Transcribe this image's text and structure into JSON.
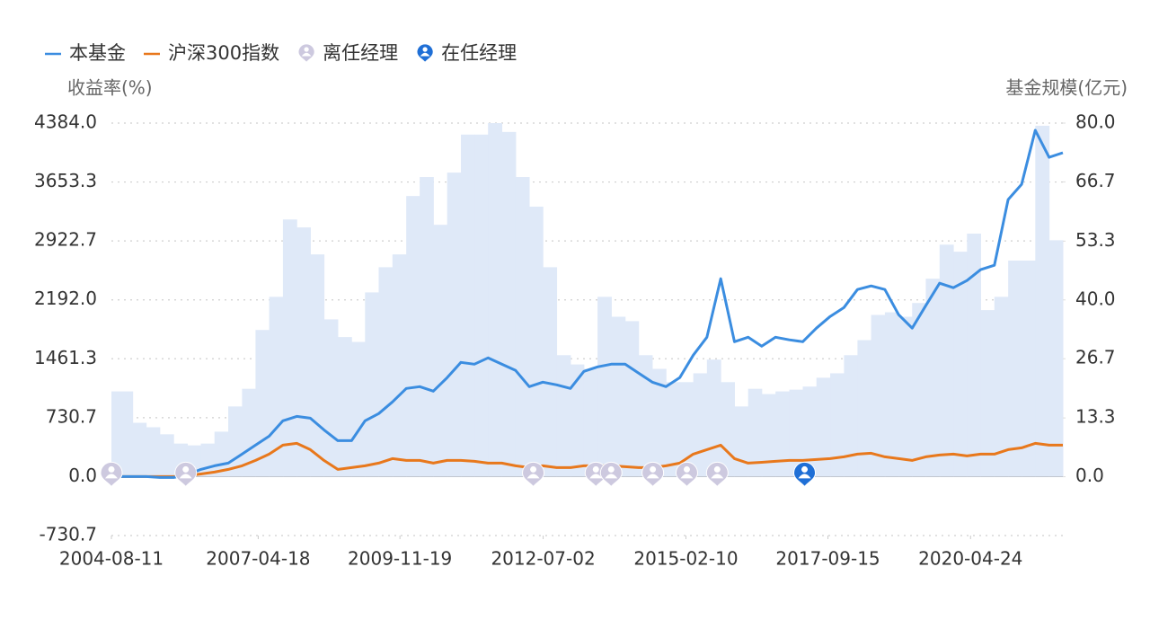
{
  "chart_data": {
    "type": "line",
    "y_label": "收益率(%)",
    "y2_label": "基金规模(亿元)",
    "xlim": [
      "2004-08-11",
      "2021-12-31"
    ],
    "xticks": [
      "2004-08-11",
      "2007-04-18",
      "2009-11-19",
      "2012-07-02",
      "2015-02-10",
      "2017-09-15",
      "2020-04-24"
    ],
    "ylim": [
      -730.7,
      4384
    ],
    "yticks": [
      -730.7,
      {
        "value": 0,
        "label": "0.0"
      },
      730.7,
      1461.3,
      {
        "value": 2192,
        "label": "2192.0"
      },
      2922.7,
      3653.3,
      {
        "value": 4384,
        "label": "4384.0"
      }
    ],
    "y2lim": [
      -13.3,
      80
    ],
    "y2ticks": [
      {
        "value": 0,
        "label": "0.0"
      },
      13.3,
      26.7,
      {
        "value": 40,
        "label": "40.0"
      },
      53.3,
      66.7,
      {
        "value": 80,
        "label": "80.0"
      }
    ],
    "grid": true,
    "x": [
      "2004-09-30",
      "2004-12-31",
      "2005-03-31",
      "2005-06-30",
      "2005-09-30",
      "2005-12-31",
      "2006-03-31",
      "2006-06-30",
      "2006-09-30",
      "2006-12-31",
      "2007-03-31",
      "2007-06-30",
      "2007-09-30",
      "2007-12-31",
      "2008-03-31",
      "2008-06-30",
      "2008-09-30",
      "2008-12-31",
      "2009-03-31",
      "2009-06-30",
      "2009-09-30",
      "2009-12-31",
      "2010-03-31",
      "2010-06-30",
      "2010-09-30",
      "2010-12-31",
      "2011-03-31",
      "2011-06-30",
      "2011-09-30",
      "2011-12-31",
      "2012-03-31",
      "2012-06-30",
      "2012-09-30",
      "2012-12-31",
      "2013-03-31",
      "2013-06-30",
      "2013-09-30",
      "2013-12-31",
      "2014-03-31",
      "2014-06-30",
      "2014-09-30",
      "2014-12-31",
      "2015-03-31",
      "2015-06-30",
      "2015-09-30",
      "2015-12-31",
      "2016-03-31",
      "2016-06-30",
      "2016-09-30",
      "2016-12-31",
      "2017-03-31",
      "2017-06-30",
      "2017-09-30",
      "2017-12-31",
      "2018-03-31",
      "2018-06-30",
      "2018-09-30",
      "2018-12-31",
      "2019-03-31",
      "2019-06-30",
      "2019-09-30",
      "2019-12-31",
      "2020-03-31",
      "2020-06-30",
      "2020-09-30",
      "2020-12-31",
      "2021-03-31",
      "2021-06-30",
      "2021-09-30",
      "2021-12-31"
    ],
    "series": [
      {
        "type": "bar",
        "axis": "y2",
        "color": "#dfe9f8",
        "values": [
          19.3,
          19.3,
          12.2,
          11.2,
          9.6,
          7.5,
          7.1,
          7.5,
          10.2,
          15.9,
          19.9,
          33.2,
          40.7,
          58.2,
          56.4,
          50.3,
          35.6,
          31.6,
          30.5,
          41.7,
          47.4,
          50.3,
          63.5,
          67.8,
          57.0,
          68.8,
          77.4,
          77.4,
          80,
          78,
          67.8,
          61.1,
          47.4,
          27.5,
          25.4,
          24.4,
          40.7,
          36.2,
          35.2,
          27.5,
          24.4,
          21.4,
          21.4,
          23.4,
          26.5,
          21.4,
          15.9,
          19.9,
          18.7,
          19.3,
          19.7,
          20.4,
          22.4,
          23.4,
          27.5,
          30.9,
          36.6,
          37.2,
          36.2,
          39.3,
          44.8,
          52.5,
          50.9,
          55,
          37.7,
          40.7,
          48.9,
          48.9,
          79.4,
          53.5
        ]
      },
      {
        "name": "沪深300指数",
        "color": "#e8781c",
        "values": [
          0,
          0,
          0,
          0,
          0,
          11,
          33,
          56,
          89,
          134,
          201,
          279,
          390,
          413,
          335,
          201,
          89,
          112,
          134,
          167,
          223,
          201,
          201,
          167,
          201,
          201,
          190,
          167,
          167,
          134,
          112,
          134,
          112,
          112,
          134,
          134,
          134,
          123,
          112,
          112,
          134,
          167,
          279,
          335,
          390,
          223,
          167,
          178,
          190,
          201,
          201,
          212,
          223,
          245,
          279,
          290,
          245,
          223,
          201,
          245,
          268,
          279,
          257,
          279,
          279,
          335,
          357,
          413,
          390,
          390
        ]
      },
      {
        "name": "本基金",
        "color": "#3b8de0",
        "values": [
          0,
          0,
          0,
          -11,
          -11,
          22,
          89,
          134,
          167,
          279,
          390,
          502,
          692,
          747,
          725,
          580,
          446,
          446,
          692,
          781,
          926,
          1093,
          1116,
          1060,
          1227,
          1417,
          1394,
          1472,
          1394,
          1316,
          1116,
          1171,
          1138,
          1093,
          1305,
          1361,
          1394,
          1394,
          1283,
          1171,
          1116,
          1227,
          1506,
          1729,
          2454,
          1673,
          1729,
          1617,
          1729,
          1696,
          1673,
          1841,
          1986,
          2097,
          2320,
          2365,
          2320,
          2008,
          1841,
          2120,
          2398,
          2343,
          2432,
          2566,
          2621,
          3436,
          3625,
          4295,
          3960,
          4016
        ]
      }
    ],
    "legend_order": [
      2,
      1
    ],
    "markers": [
      {
        "name": "离任经理",
        "color": "#cdc9df",
        "x": [
          "2004-08-11",
          "2005-12-20",
          "2012-04-27",
          "2013-06-19",
          "2013-09-29",
          "2014-07-04",
          "2015-02-16",
          "2015-09-07"
        ]
      },
      {
        "name": "在任经理",
        "color": "#1f6fd6",
        "x": [
          "2017-04-12"
        ]
      }
    ]
  }
}
